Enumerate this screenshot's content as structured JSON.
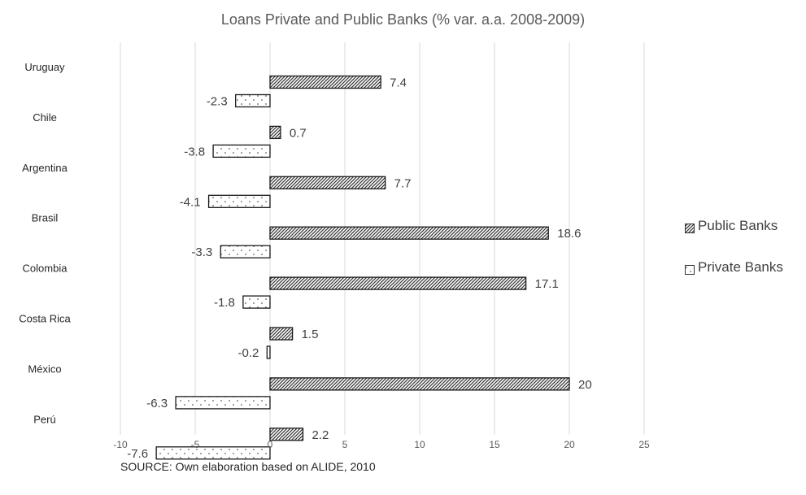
{
  "chart_data": {
    "type": "bar",
    "orientation": "horizontal",
    "title": "Loans Private and Public Banks (% var. a.a. 2008-2009)",
    "categories": [
      "Uruguay",
      "Chile",
      "Argentina",
      "Brasil",
      "Colombia",
      "Costa Rica",
      "México",
      "Perú"
    ],
    "series": [
      {
        "name": "Public Banks",
        "values": [
          7.4,
          0.7,
          7.7,
          18.6,
          17.1,
          1.5,
          20,
          2.2
        ],
        "pattern": "diagonal-hatch"
      },
      {
        "name": "Private Banks",
        "values": [
          -2.3,
          -3.8,
          -4.1,
          -3.3,
          -1.8,
          -0.2,
          -6.3,
          -7.6
        ],
        "pattern": "dotted"
      }
    ],
    "x_ticks": [
      "-10",
      "-5",
      "0",
      "5",
      "10",
      "15",
      "20",
      "25"
    ],
    "xlim": [
      -10,
      25
    ],
    "grid": true,
    "legend_position": "right",
    "source": "SOURCE: Own elaboration based on ALIDE, 2010"
  }
}
